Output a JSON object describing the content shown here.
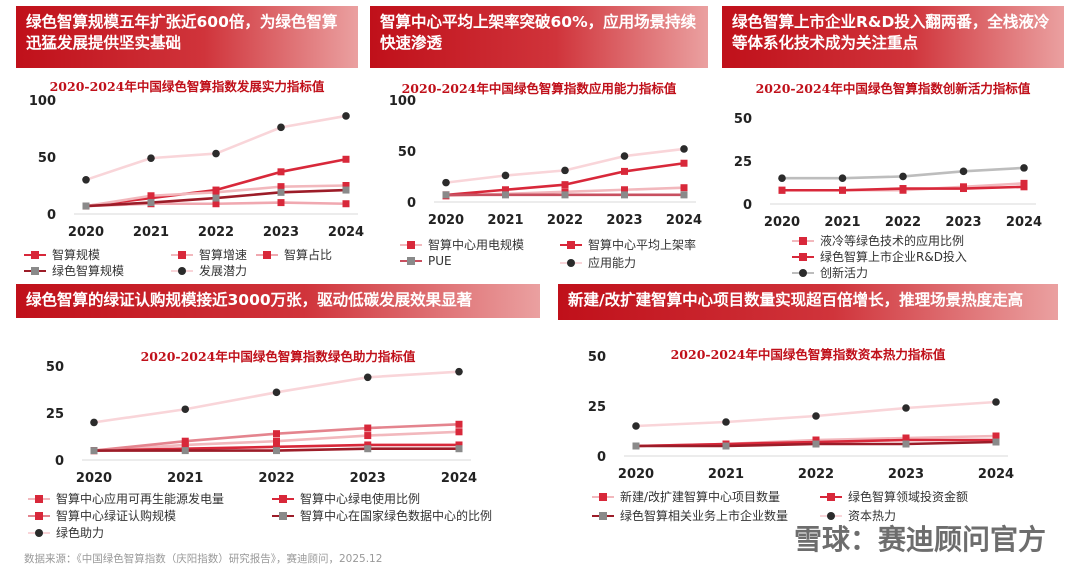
{
  "panels": [
    {
      "id": "p1",
      "banner": "绿色智算规模五年扩张近600倍，为绿色智算迅猛发展提供坚实基础",
      "chart_title": "2020-2024年中国绿色智算指数发展实力指标值"
    },
    {
      "id": "p2",
      "banner": "智算中心平均上架率突破60%，应用场景持续快速渗透",
      "chart_title": "2020-2024年中国绿色智算指数应用能力指标值"
    },
    {
      "id": "p3",
      "banner": "绿色智算上市企业R&D投入翻两番，全栈液冷等体系化技术成为关注重点",
      "chart_title": "2020-2024年中国绿色智算指数创新活力指标值"
    },
    {
      "id": "p4",
      "banner": "绿色智算的绿证认购规模接近3000万张，驱动低碳发展效果显著",
      "chart_title": "2020-2024年中国绿色智算指数绿色助力指标值"
    },
    {
      "id": "p5",
      "banner": "新建/改扩建智算中心项目数量实现超百倍增长，推理场景热度走高",
      "chart_title": "2020-2024年中国绿色智算指数资本热力指标值"
    }
  ],
  "chart_data": [
    {
      "type": "line",
      "title": "2020-2024年中国绿色智算指数发展实力指标值",
      "x": [
        "2020",
        "2021",
        "2022",
        "2023",
        "2024"
      ],
      "ylim": [
        0,
        100
      ],
      "yticks": [
        "0",
        "50",
        "100"
      ],
      "series": [
        {
          "name": "智算规模",
          "values": [
            7,
            14,
            21,
            37,
            48
          ],
          "color": "#d8283a",
          "marker": "square"
        },
        {
          "name": "智算增速",
          "values": [
            7,
            16,
            19,
            24,
            25
          ],
          "color": "#f2b8bd",
          "marker": "square"
        },
        {
          "name": "智算占比",
          "values": [
            7,
            9,
            9,
            10,
            9
          ],
          "color": "#f0a8b0",
          "marker": "square"
        },
        {
          "name": "绿色智算规模",
          "values": [
            7,
            10,
            14,
            19,
            21
          ],
          "color": "#9c1c28",
          "marker": "square"
        },
        {
          "name": "发展潜力",
          "values": [
            30,
            49,
            53,
            76,
            86
          ],
          "color": "#f9d5d9",
          "marker": "circle"
        }
      ]
    },
    {
      "type": "line",
      "title": "2020-2024年中国绿色智算指数应用能力指标值",
      "x": [
        "2020",
        "2021",
        "2022",
        "2023",
        "2024"
      ],
      "ylim": [
        0,
        100
      ],
      "yticks": [
        "0",
        "50",
        "100"
      ],
      "series": [
        {
          "name": "智算中心用电规模",
          "values": [
            6,
            8,
            10,
            12,
            14
          ],
          "color": "#f2b8bd",
          "marker": "square"
        },
        {
          "name": "智算中心平均上架率",
          "values": [
            7,
            12,
            17,
            30,
            38
          ],
          "color": "#d8283a",
          "marker": "square"
        },
        {
          "name": "PUE",
          "values": [
            7,
            7,
            7,
            7,
            7
          ],
          "color": "#c85060",
          "marker": "square"
        },
        {
          "name": "应用能力",
          "values": [
            19,
            26,
            31,
            45,
            52
          ],
          "color": "#f9d5d9",
          "marker": "circle"
        }
      ]
    },
    {
      "type": "line",
      "title": "2020-2024年中国绿色智算指数创新活力指标值",
      "x": [
        "2020",
        "2021",
        "2022",
        "2023",
        "2024"
      ],
      "ylim": [
        0,
        50
      ],
      "yticks": [
        "0",
        "25",
        "50"
      ],
      "series": [
        {
          "name": "液冷等绿色技术的应用比例",
          "values": [
            8,
            8,
            8,
            10,
            12
          ],
          "color": "#f2b8bd",
          "marker": "square"
        },
        {
          "name": "绿色智算上市企业R&D投入",
          "values": [
            8,
            8,
            9,
            9,
            10
          ],
          "color": "#d8283a",
          "marker": "square"
        },
        {
          "name": "创新活力",
          "values": [
            15,
            15,
            16,
            19,
            21
          ],
          "color": "#bdbdbd",
          "marker": "circle"
        }
      ]
    },
    {
      "type": "line",
      "title": "2020-2024年中国绿色智算指数绿色助力指标值",
      "x": [
        "2020",
        "2021",
        "2022",
        "2023",
        "2024"
      ],
      "ylim": [
        0,
        50
      ],
      "yticks": [
        "0",
        "25",
        "50"
      ],
      "series": [
        {
          "name": "智算中心应用可再生能源发电量",
          "values": [
            5,
            8,
            10,
            13,
            15
          ],
          "color": "#f2b8bd",
          "marker": "square"
        },
        {
          "name": "智算中心绿电使用比例",
          "values": [
            5,
            6,
            7,
            8,
            8
          ],
          "color": "#d8283a",
          "marker": "square"
        },
        {
          "name": "智算中心绿证认购规模",
          "values": [
            5,
            10,
            14,
            17,
            19
          ],
          "color": "#e4848e",
          "marker": "square"
        },
        {
          "name": "智算中心在国家绿色数据中心的比例",
          "values": [
            5,
            5,
            5,
            6,
            6
          ],
          "color": "#9c1c28",
          "marker": "square"
        },
        {
          "name": "绿色助力",
          "values": [
            20,
            27,
            36,
            44,
            47
          ],
          "color": "#f9d5d9",
          "marker": "circle"
        }
      ]
    },
    {
      "type": "line",
      "title": "2020-2024年中国绿色智算指数资本热力指标值",
      "x": [
        "2020",
        "2021",
        "2022",
        "2023",
        "2024"
      ],
      "ylim": [
        0,
        50
      ],
      "yticks": [
        "0",
        "25",
        "50"
      ],
      "series": [
        {
          "name": "新建/改扩建智算中心项目数量",
          "values": [
            5,
            6,
            8,
            9,
            10
          ],
          "color": "#f2b8bd",
          "marker": "square"
        },
        {
          "name": "绿色智算领域投资金额",
          "values": [
            5,
            6,
            7,
            8,
            8
          ],
          "color": "#d8283a",
          "marker": "square"
        },
        {
          "name": "绿色智算相关业务上市企业数量",
          "values": [
            5,
            5,
            6,
            6,
            7
          ],
          "color": "#9c1c28",
          "marker": "square"
        },
        {
          "name": "资本热力",
          "values": [
            15,
            17,
            20,
            24,
            27
          ],
          "color": "#f9d5d9",
          "marker": "circle"
        }
      ]
    }
  ],
  "footer": {
    "source": "数据来源：《中国绿色智算指数（庆阳指数）研究报告》，赛迪顾问，2025.12",
    "watermark": "雪球：赛迪顾问官方"
  }
}
